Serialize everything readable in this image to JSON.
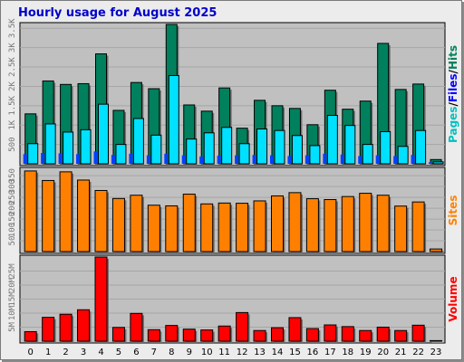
{
  "chart_data": {
    "title": "Hourly usage for August 2025",
    "categories": [
      "0",
      "1",
      "2",
      "3",
      "4",
      "5",
      "6",
      "7",
      "8",
      "9",
      "10",
      "11",
      "12",
      "13",
      "14",
      "15",
      "16",
      "17",
      "18",
      "19",
      "20",
      "21",
      "22",
      "23"
    ],
    "colors": {
      "hits": "#00805c",
      "files": "#00e0ff",
      "pages": "#0040ff",
      "sites": "#ff8000",
      "volume": "#ff0000",
      "panel": "#c0c0c0",
      "title": "#0000cc"
    },
    "charts": [
      {
        "type": "bar",
        "ylabel": "Pages/Files/Hits",
        "ylabel_parts": [
          {
            "text": "Pages",
            "color": "#00c0c0"
          },
          {
            "text": "/",
            "color": "#000000"
          },
          {
            "text": "Files",
            "color": "#0000ff"
          },
          {
            "text": "/",
            "color": "#000000"
          },
          {
            "text": "Hits",
            "color": "#00805c"
          }
        ],
        "yticks": [
          {
            "value": 500,
            "label": "500"
          },
          {
            "value": 1000,
            "label": "1K"
          },
          {
            "value": 1500,
            "label": "1.5K"
          },
          {
            "value": 2000,
            "label": "2K"
          },
          {
            "value": 2500,
            "label": "2.5K"
          },
          {
            "value": 3000,
            "label": "3K"
          },
          {
            "value": 3500,
            "label": "3.5K"
          }
        ],
        "ylim": [
          0,
          3600
        ],
        "series": [
          {
            "name": "Hits",
            "values": [
              1290,
              2140,
              2050,
              2070,
              2840,
              1380,
              2100,
              1940,
              3600,
              1520,
              1360,
              1960,
              920,
              1640,
              1500,
              1430,
              1010,
              1900,
              1410,
              1620,
              3110,
              1920,
              2060,
              110
            ]
          },
          {
            "name": "Files",
            "values": [
              520,
              1030,
              820,
              880,
              1540,
              500,
              1170,
              740,
              2280,
              640,
              800,
              940,
              520,
              900,
              860,
              730,
              470,
              1250,
              990,
              500,
              830,
              450,
              860,
              50
            ]
          },
          {
            "name": "Pages",
            "values": [
              250,
              280,
              270,
              250,
              320,
              230,
              260,
              220,
              260,
              220,
              190,
              210,
              220,
              230,
              220,
              200,
              220,
              260,
              240,
              200,
              220,
              200,
              230,
              40
            ]
          }
        ]
      },
      {
        "type": "bar",
        "ylabel": "Sites",
        "yticks": [
          {
            "value": 50,
            "label": "50"
          },
          {
            "value": 100,
            "label": "100"
          },
          {
            "value": 150,
            "label": "150"
          },
          {
            "value": 200,
            "label": "200"
          },
          {
            "value": 250,
            "label": "250"
          },
          {
            "value": 300,
            "label": "300"
          },
          {
            "value": 350,
            "label": "350"
          }
        ],
        "ylim": [
          0,
          380
        ],
        "series": [
          {
            "name": "Sites",
            "values": [
              372,
              328,
              368,
              330,
              282,
              245,
              260,
              214,
              211,
              265,
              220,
              224,
              223,
              234,
              257,
              272,
              244,
              240,
              254,
              269,
              260,
              210,
              229,
              12
            ]
          }
        ]
      },
      {
        "type": "bar",
        "ylabel": "Volume",
        "yticks": [
          {
            "value": 5,
            "label": "5M"
          },
          {
            "value": 10,
            "label": "10M"
          },
          {
            "value": 15,
            "label": "15M"
          },
          {
            "value": 20,
            "label": "20M"
          },
          {
            "value": 25,
            "label": "25M"
          }
        ],
        "ylim": [
          0,
          30
        ],
        "series": [
          {
            "name": "Volume",
            "values": [
              3.4,
              8.5,
              9.6,
              11.2,
              30,
              4.9,
              9.9,
              4.1,
              5.6,
              4.3,
              4.0,
              5.4,
              10.2,
              3.8,
              4.8,
              8.4,
              4.5,
              5.8,
              5.2,
              3.8,
              5.0,
              3.8,
              5.7,
              0.2
            ]
          }
        ]
      }
    ]
  }
}
